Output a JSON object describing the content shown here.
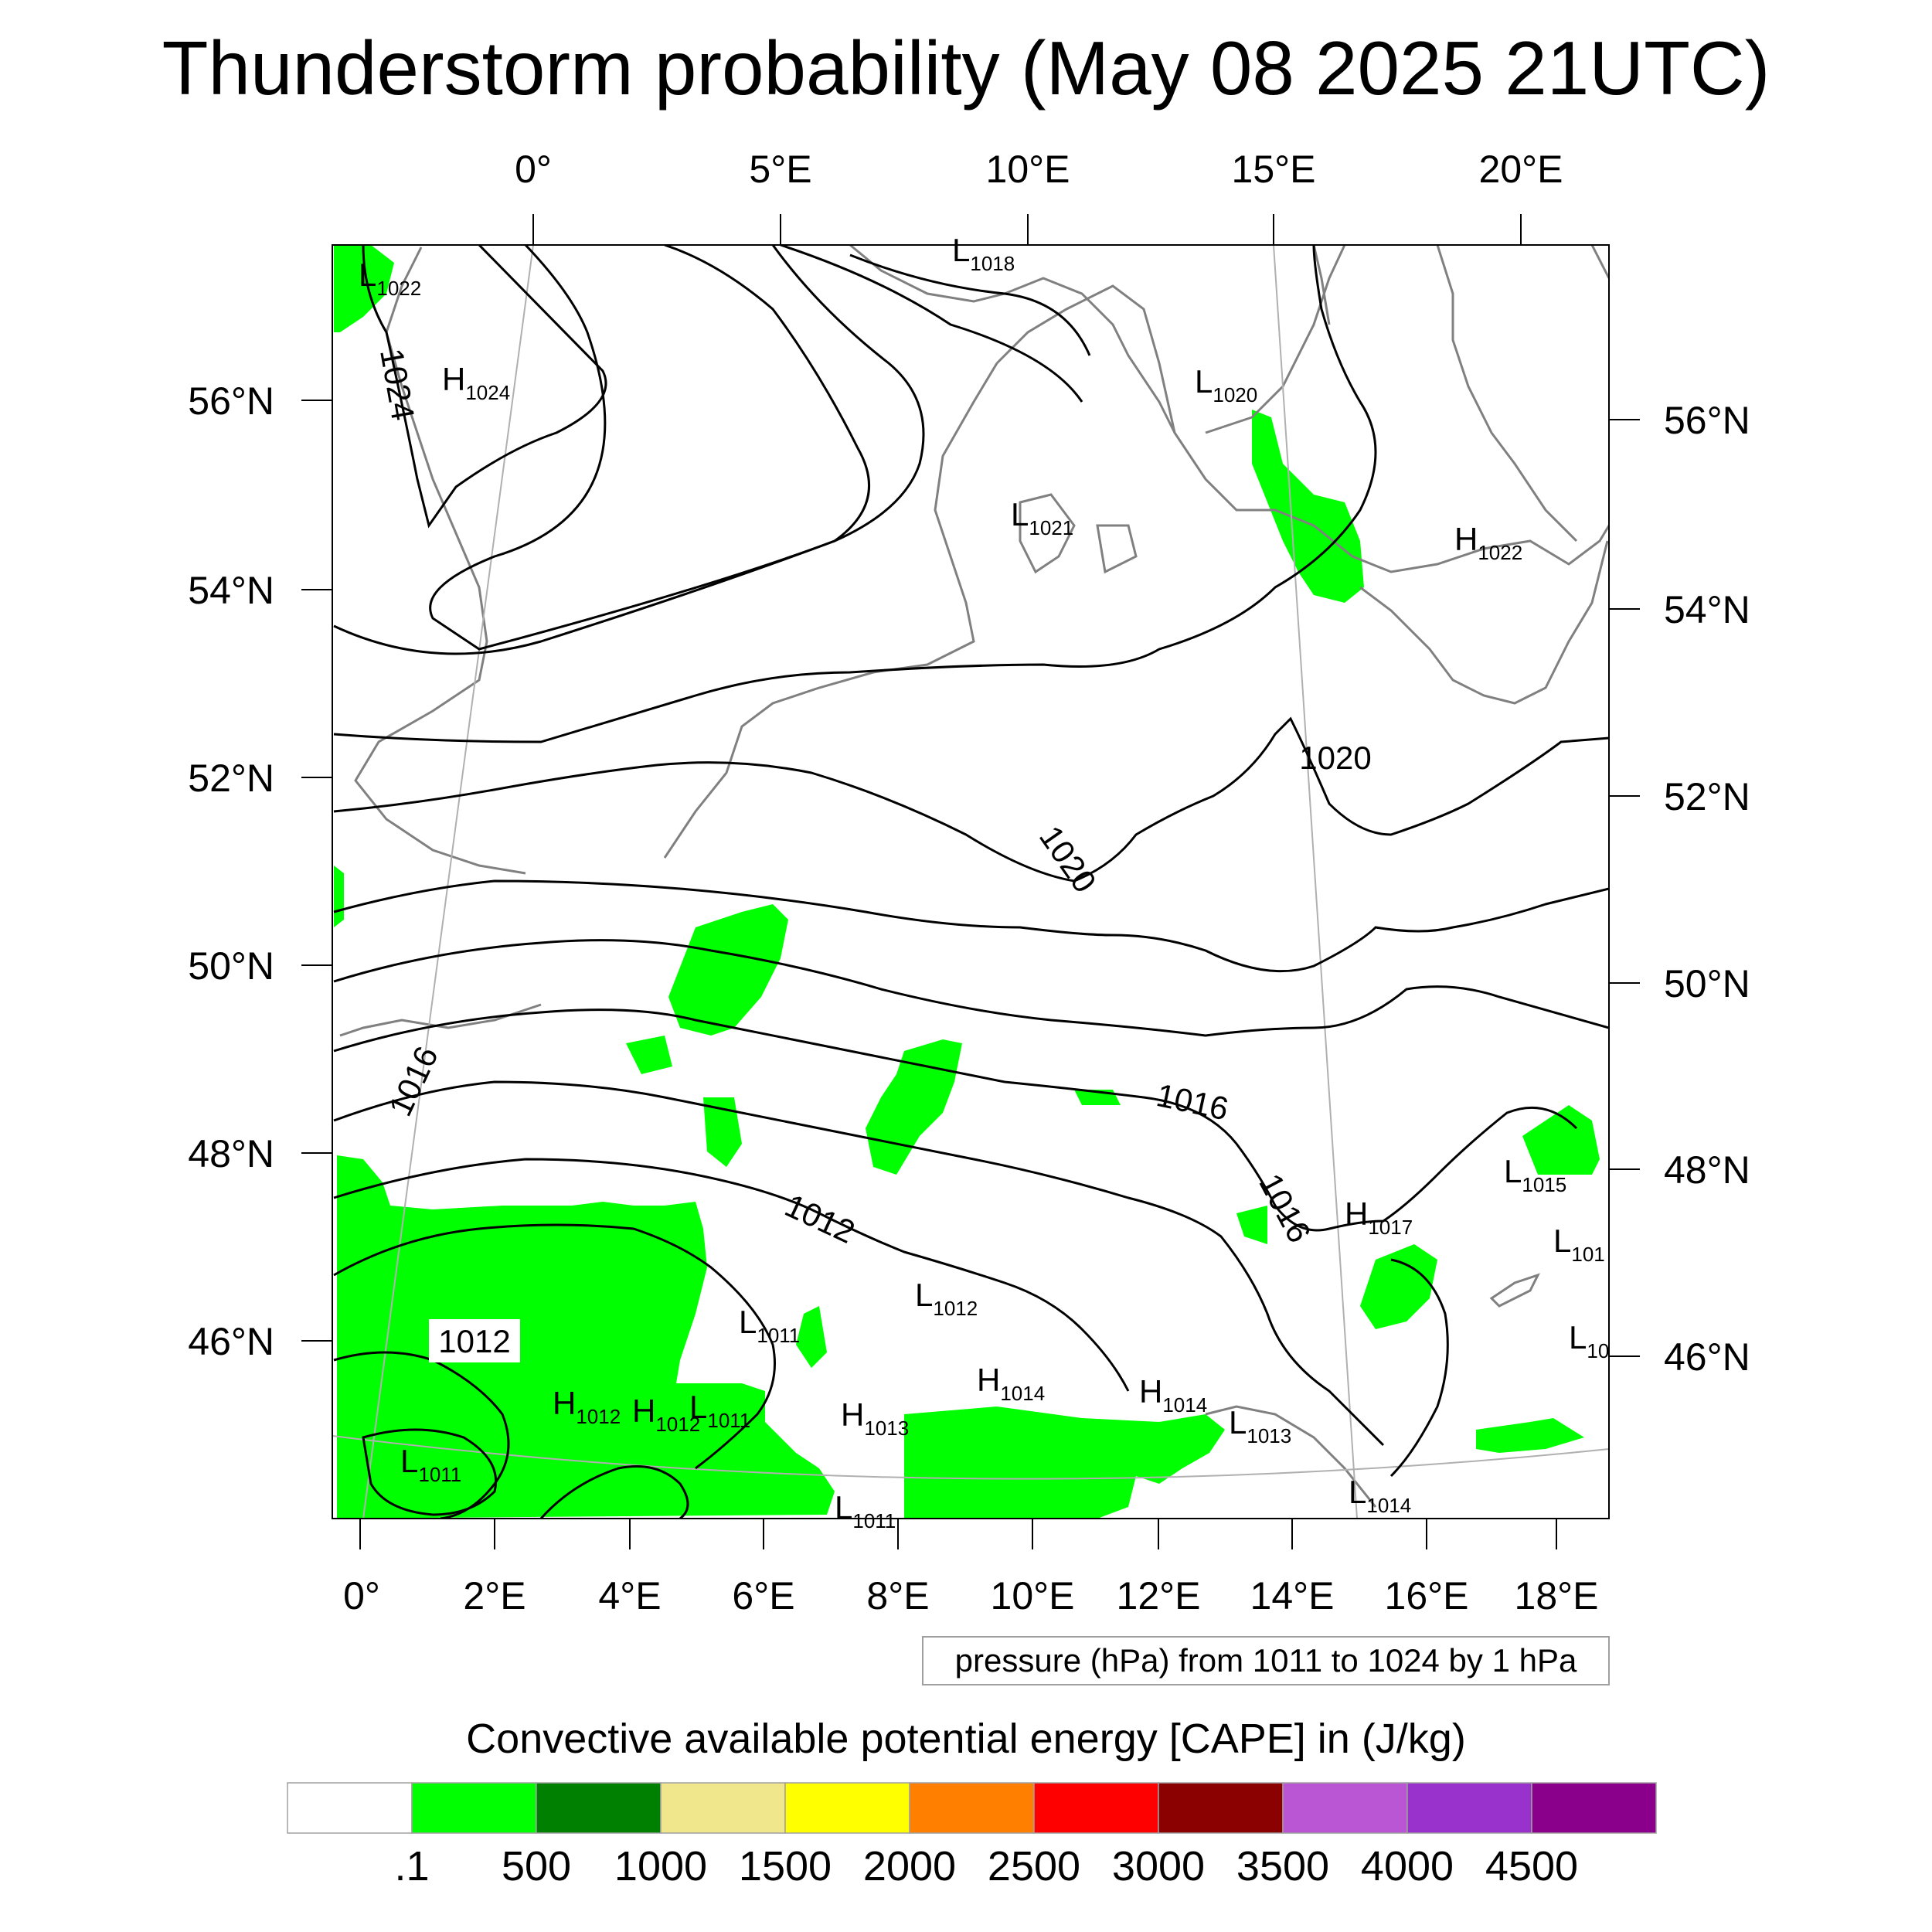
{
  "title": "Thunderstorm probability (May 08 2025 21UTC)",
  "top_lon_labels": [
    "0°",
    "5°E",
    "10°E",
    "15°E",
    "20°E"
  ],
  "bottom_lon_labels": [
    "0°",
    "2°E",
    "4°E",
    "6°E",
    "8°E",
    "10°E",
    "12°E",
    "14°E",
    "16°E",
    "18°E"
  ],
  "left_lat_labels": [
    "56°N",
    "54°N",
    "52°N",
    "50°N",
    "48°N",
    "46°N"
  ],
  "right_lat_labels": [
    "56°N",
    "54°N",
    "52°N",
    "50°N",
    "48°N",
    "46°N"
  ],
  "pressure_centers": [
    {
      "letter": "L",
      "value": "1022"
    },
    {
      "letter": "H",
      "value": "1024"
    },
    {
      "letter": "L",
      "value": "1018"
    },
    {
      "letter": "L",
      "value": "1020"
    },
    {
      "letter": "L",
      "value": "1021"
    },
    {
      "letter": "H",
      "value": "1022"
    },
    {
      "letter": "L",
      "value": "1015"
    },
    {
      "letter": "H",
      "value": "1017"
    },
    {
      "letter": "L",
      "value": "101"
    },
    {
      "letter": "L",
      "value": "10"
    },
    {
      "letter": "L",
      "value": "1011"
    },
    {
      "letter": "L",
      "value": "1012"
    },
    {
      "letter": "H",
      "value": "1012"
    },
    {
      "letter": "H",
      "value": "1012"
    },
    {
      "letter": "L",
      "value": "1011"
    },
    {
      "letter": "H",
      "value": "1013"
    },
    {
      "letter": "H",
      "value": "1014"
    },
    {
      "letter": "H",
      "value": "1014"
    },
    {
      "letter": "L",
      "value": "1013"
    },
    {
      "letter": "L",
      "value": "1011"
    },
    {
      "letter": "L",
      "value": "1011"
    },
    {
      "letter": "L",
      "value": "1014"
    }
  ],
  "isobar_labels": [
    "1024",
    "1020",
    "1020",
    "1016",
    "1016",
    "1016",
    "1012",
    "1012"
  ],
  "contour_note": "pressure (hPa) from 1011 to 1024 by 1 hPa",
  "colorbar": {
    "title": "Convective available potential energy [CAPE] in (J/kg)",
    "colors": [
      "#ffffff",
      "#00ff00",
      "#008000",
      "#f0e68c",
      "#ffff00",
      "#ff8000",
      "#ff0000",
      "#8b0000",
      "#ba55d3",
      "#9932cc",
      "#8b008b"
    ],
    "labels": [
      ".1",
      "500",
      "1000",
      "1500",
      "2000",
      "2500",
      "3000",
      "3500",
      "4000",
      "4500"
    ]
  },
  "colors": {
    "cape_low": "#00ff00",
    "coast": "#808080",
    "isobar": "#000000"
  }
}
